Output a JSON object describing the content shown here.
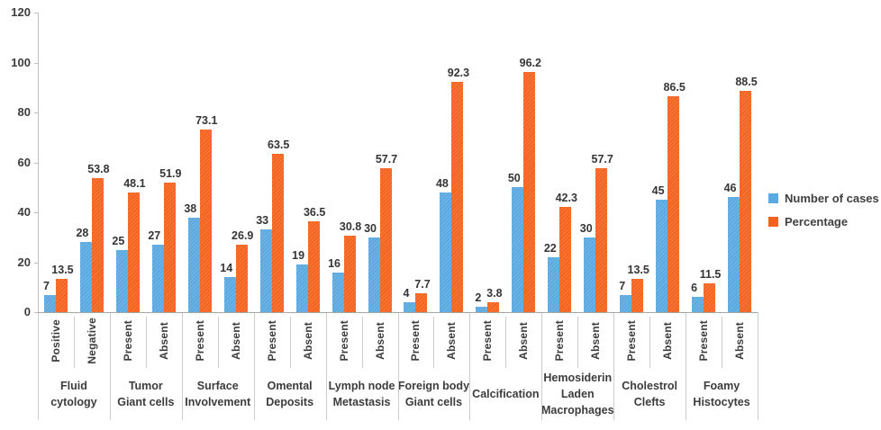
{
  "chart_data": {
    "type": "bar",
    "title": "",
    "xlabel": "",
    "ylabel": "",
    "ylim": [
      0,
      120
    ],
    "yticks": [
      0,
      20,
      40,
      60,
      80,
      100,
      120
    ],
    "grid": false,
    "legend_position": "right",
    "legend": [
      {
        "name": "Number of cases",
        "color": "#5aa9e1"
      },
      {
        "name": "Percentage",
        "color": "#f4631d"
      }
    ],
    "groups": [
      {
        "label": "Fluid\ncytology",
        "bars": [
          {
            "sub": "Positive",
            "cases": 7,
            "pct": 13.5
          },
          {
            "sub": "Negative",
            "cases": 28,
            "pct": 53.8
          }
        ]
      },
      {
        "label": "Tumor\nGiant cells",
        "bars": [
          {
            "sub": "Present",
            "cases": 25,
            "pct": 48.1
          },
          {
            "sub": "Absent",
            "cases": 27,
            "pct": 51.9
          }
        ]
      },
      {
        "label": "Surface\nInvolvement",
        "bars": [
          {
            "sub": "Present",
            "cases": 38,
            "pct": 73.1
          },
          {
            "sub": "Absent",
            "cases": 14,
            "pct": 26.9
          }
        ]
      },
      {
        "label": "Omental\nDeposits",
        "bars": [
          {
            "sub": "Present",
            "cases": 33,
            "pct": 63.5
          },
          {
            "sub": "Absent",
            "cases": 19,
            "pct": 36.5
          }
        ]
      },
      {
        "label": "Lymph node\nMetastasis",
        "bars": [
          {
            "sub": "Present",
            "cases": 16,
            "pct": 30.8
          },
          {
            "sub": "Absent",
            "cases": 30,
            "pct": 57.7
          }
        ]
      },
      {
        "label": "Foreign body\nGiant cells",
        "bars": [
          {
            "sub": "Present",
            "cases": 4,
            "pct": 7.7
          },
          {
            "sub": "Absent",
            "cases": 48,
            "pct": 92.3
          }
        ]
      },
      {
        "label": "Calcification",
        "bars": [
          {
            "sub": "Present",
            "cases": 2,
            "pct": 3.8
          },
          {
            "sub": "Absent",
            "cases": 50,
            "pct": 96.2
          }
        ]
      },
      {
        "label": "Hemosiderin\nLaden\nMacrophages",
        "bars": [
          {
            "sub": "Present",
            "cases": 22,
            "pct": 42.3
          },
          {
            "sub": "Absent",
            "cases": 30,
            "pct": 57.7
          }
        ]
      },
      {
        "label": "Cholestrol\nClefts",
        "bars": [
          {
            "sub": "Present",
            "cases": 7,
            "pct": 13.5
          },
          {
            "sub": "Absent",
            "cases": 45,
            "pct": 86.5
          }
        ]
      },
      {
        "label": "Foamy\nHistocytes",
        "bars": [
          {
            "sub": "Present",
            "cases": 6,
            "pct": 11.5
          },
          {
            "sub": "Absent",
            "cases": 46,
            "pct": 88.5
          }
        ]
      }
    ]
  }
}
